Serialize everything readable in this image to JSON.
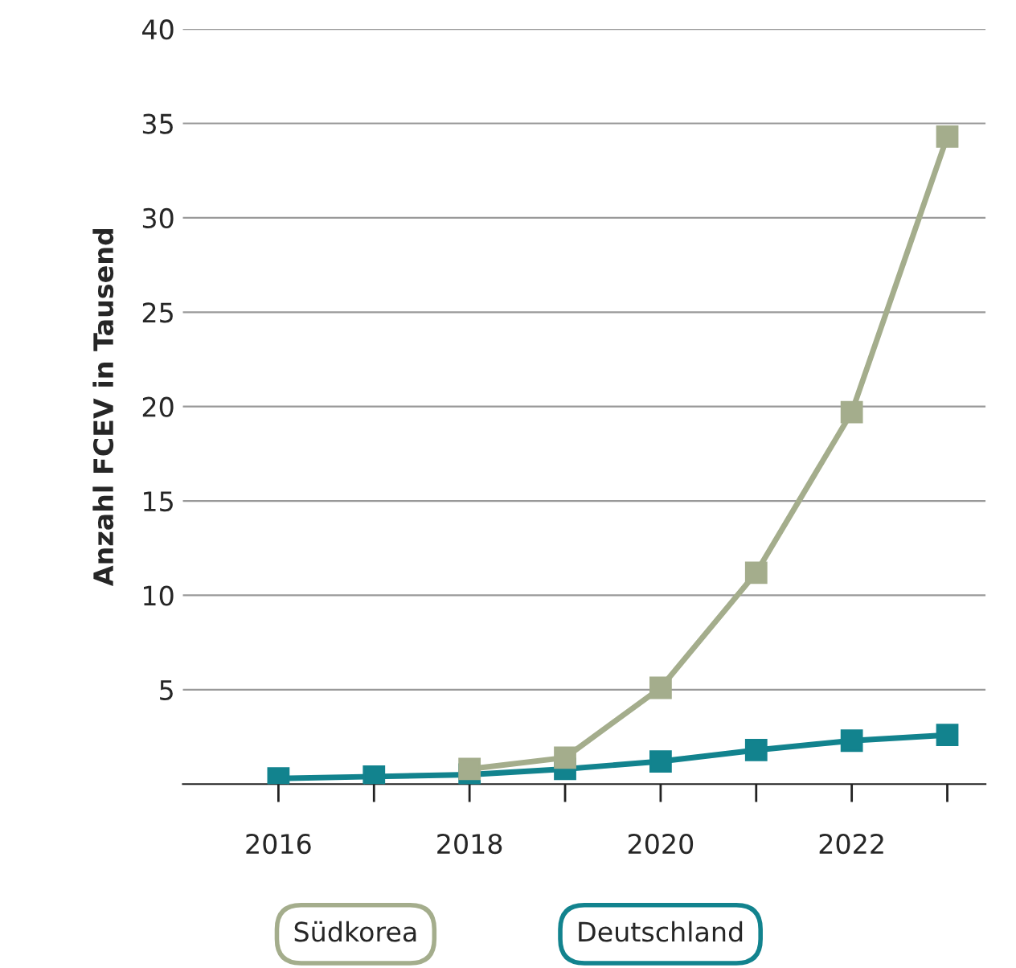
{
  "chart_data": {
    "type": "line",
    "ylabel": "Anzahl FCEV in Tausend",
    "x": [
      2016,
      2017,
      2018,
      2019,
      2020,
      2021,
      2022,
      2023
    ],
    "series": [
      {
        "name": "Südkorea",
        "color": "#a4ad8c",
        "values": [
          null,
          null,
          0.8,
          1.4,
          5.1,
          11.2,
          19.7,
          34.3
        ]
      },
      {
        "name": "Deutschland",
        "color": "#12838e",
        "values": [
          0.3,
          0.4,
          0.5,
          0.8,
          1.2,
          1.8,
          2.3,
          2.6
        ]
      }
    ],
    "xlim": [
      2015,
      2023.4
    ],
    "ylim": [
      0,
      40
    ],
    "xticks": [
      2016,
      {
        "value": 2017,
        "label": null
      },
      2018,
      {
        "value": 2019,
        "label": null
      },
      2020,
      {
        "value": 2021,
        "label": null
      },
      2022,
      {
        "value": 2023,
        "label": null
      }
    ],
    "yticks": [
      5,
      10,
      15,
      20,
      25,
      30,
      35,
      40
    ],
    "grid": "y",
    "legend": "bottom",
    "marker": "square",
    "line_style": "solid"
  }
}
